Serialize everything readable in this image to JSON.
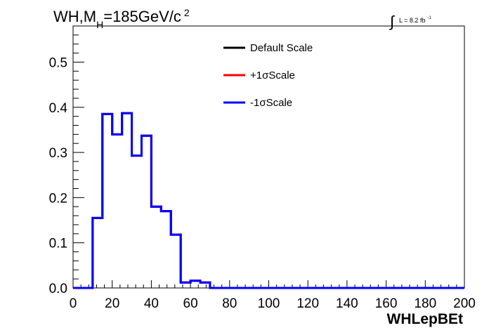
{
  "header": {
    "title_main": "WH,M",
    "title_sub": "H",
    "title_rest": "=185GeV/c",
    "title_sup": "2",
    "lumi_text": "L = 8.2 fb",
    "lumi_exp": "-1"
  },
  "colors": {
    "default": "#000000",
    "plus": "#ff0000",
    "minus": "#0000ff"
  },
  "chart_data": {
    "type": "line",
    "xlabel": "WHLepBEt",
    "ylabel": "",
    "xlim": [
      0,
      200
    ],
    "ylim": [
      0,
      0.58
    ],
    "grid": false,
    "legend_position": "top-center",
    "x_ticks": [
      0,
      20,
      40,
      60,
      80,
      100,
      120,
      140,
      160,
      180,
      200
    ],
    "y_ticks": [
      0.0,
      0.1,
      0.2,
      0.3,
      0.4,
      0.5
    ],
    "x_tick_labels": [
      "0",
      "20",
      "40",
      "60",
      "80",
      "100",
      "120",
      "140",
      "160",
      "180",
      "200"
    ],
    "y_tick_labels": [
      "0.0",
      "0.1",
      "0.2",
      "0.3",
      "0.4",
      "0.5"
    ],
    "bin_edges": [
      0,
      5,
      10,
      15,
      20,
      25,
      30,
      35,
      40,
      45,
      50,
      55,
      60,
      65,
      70,
      75,
      80,
      85,
      90,
      95,
      100,
      105,
      110,
      115,
      120,
      125,
      130,
      135,
      140,
      145,
      150,
      155,
      160,
      165,
      170,
      175,
      180,
      185,
      190,
      195,
      200
    ],
    "series": [
      {
        "name": "Default Scale",
        "values": [
          0,
          0,
          0.155,
          0.385,
          0.34,
          0.387,
          0.293,
          0.337,
          0.18,
          0.17,
          0.118,
          0.012,
          0.016,
          0.012,
          0,
          0,
          0,
          0,
          0,
          0,
          0,
          0,
          0,
          0,
          0,
          0,
          0,
          0,
          0,
          0,
          0,
          0,
          0,
          0,
          0,
          0,
          0,
          0,
          0,
          0
        ]
      },
      {
        "name": "+1σScale",
        "values": [
          0,
          0,
          0.155,
          0.385,
          0.34,
          0.387,
          0.293,
          0.337,
          0.18,
          0.17,
          0.118,
          0.012,
          0.016,
          0.012,
          0,
          0,
          0,
          0,
          0,
          0,
          0,
          0,
          0,
          0,
          0,
          0,
          0,
          0,
          0,
          0,
          0,
          0,
          0,
          0,
          0,
          0,
          0,
          0,
          0,
          0
        ]
      },
      {
        "name": "-1σScale",
        "values": [
          0,
          0,
          0.155,
          0.385,
          0.34,
          0.387,
          0.293,
          0.337,
          0.18,
          0.17,
          0.118,
          0.012,
          0.016,
          0.012,
          0,
          0,
          0,
          0,
          0,
          0,
          0,
          0,
          0,
          0,
          0,
          0,
          0,
          0,
          0,
          0,
          0,
          0,
          0,
          0,
          0,
          0,
          0,
          0,
          0,
          0
        ]
      }
    ]
  }
}
